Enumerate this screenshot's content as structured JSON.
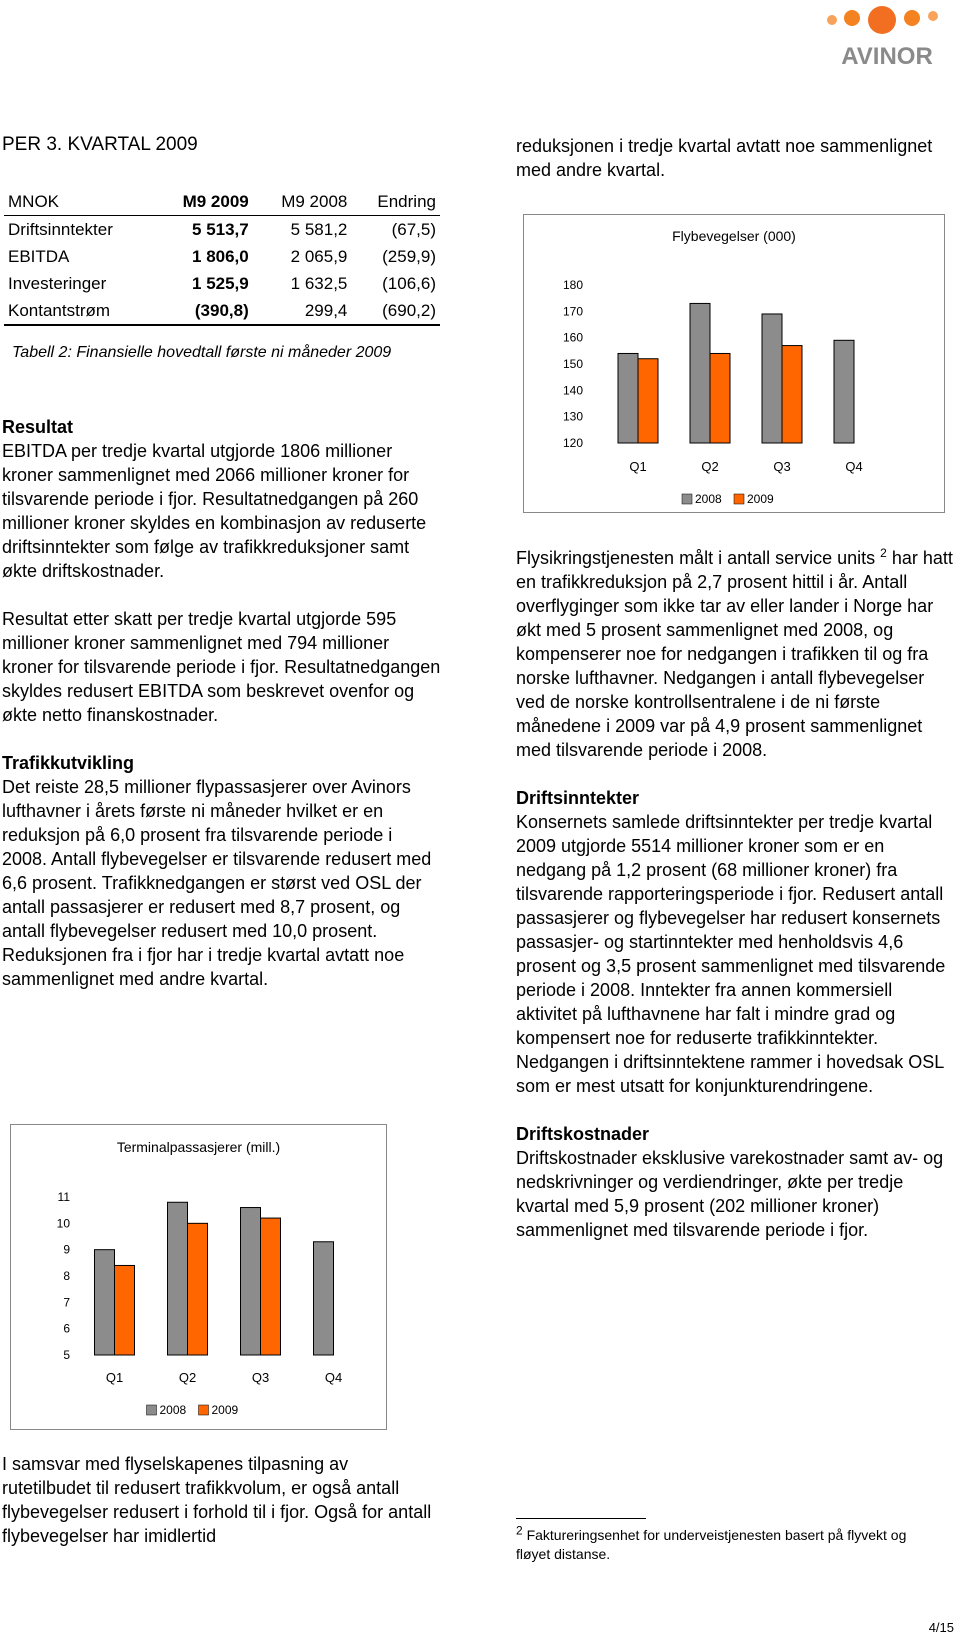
{
  "header": {
    "logo": "AVINOR",
    "title": "PER 3. KVARTAL 2009"
  },
  "table": {
    "columns": [
      "MNOK",
      "M9 2009",
      "M9 2008",
      "Endring"
    ],
    "rows": [
      [
        "Driftsinntekter",
        "5 513,7",
        "5 581,2",
        "(67,5)"
      ],
      [
        "EBITDA",
        "1 806,0",
        "2 065,9",
        "(259,9)"
      ],
      [
        "Investeringer",
        "1 525,9",
        "1 632,5",
        "(106,6)"
      ],
      [
        "Kontantstrøm",
        "(390,8)",
        "299,4",
        "(690,2)"
      ]
    ],
    "caption": "Tabell 2: Finansielle hovedtall første ni måneder 2009"
  },
  "left_column": [
    {
      "heading": "Resultat",
      "paragraphs": [
        "EBITDA per tredje kvartal utgjorde 1806 millioner kroner sammenlignet med 2066 millioner kroner for tilsvarende periode i fjor. Resultatnedgangen på 260 millioner kroner skyldes en kombinasjon av reduserte driftsinntekter som følge av trafikkreduksjoner samt økte driftskostnader.",
        "Resultat etter skatt per tredje kvartal utgjorde 595 millioner kroner sammenlignet med 794 millioner kroner for tilsvarende periode i fjor. Resultatnedgangen skyldes redusert EBITDA som beskrevet ovenfor og økte netto finanskostnader."
      ]
    },
    {
      "heading": "Trafikkutvikling",
      "paragraphs": [
        "Det reiste 28,5 millioner flypassasjerer over Avinors lufthavner i årets første ni måneder hvilket er en reduksjon på 6,0 prosent fra tilsvarende periode i 2008. Antall flybevegelser er tilsvarende redusert med 6,6 prosent. Trafikknedgangen er størst ved OSL der antall passasjerer er redusert med 8,7 prosent, og antall flybevegelser redusert med 10,0 prosent. Reduksjonen fra i fjor har i tredje kvartal avtatt noe sammenlignet med andre kvartal."
      ]
    }
  ],
  "left_bottom": "I samsvar med flyselskapenes tilpasning av rutetilbudet til redusert trafikkvolum, er også antall flybevegelser redusert i forhold til i fjor. Også for antall flybevegelser har imidlertid",
  "right_top": "reduksjonen i tredje kvartal avtatt noe sammenlignet med andre kvartal.",
  "right_column": [
    {
      "text_before": "Flysikringstjenesten målt i antall service units",
      "footnote_ref": "2",
      "text_after": "har hatt en trafikkreduksjon på 2,7 prosent hittil i år. Antall overflyginger som ikke tar av eller lander i Norge har økt med 5 prosent sammenlignet med 2008, og kompenserer noe for nedgangen i trafikken til og fra norske lufthavner. Nedgangen i antall flybevegelser ved de norske kontrollsentralene i de ni første månedene i 2009 var på 4,9 prosent sammenlignet med tilsvarende periode i 2008."
    },
    {
      "heading": "Driftsinntekter",
      "paragraphs": [
        "Konsernets samlede driftsinntekter per tredje kvartal 2009 utgjorde 5514 millioner kroner som er en nedgang på 1,2 prosent (68 millioner kroner) fra tilsvarende rapporteringsperiode i fjor. Redusert antall passasjerer og flybevegelser har redusert konsernets passasjer- og startinntekter med henholdsvis 4,6 prosent og 3,5 prosent sammenlignet med tilsvarende periode i 2008. Inntekter fra annen kommersiell aktivitet på lufthavnene har falt i mindre grad og kompensert noe for reduserte trafikkinntekter. Nedgangen i driftsinntektene rammer i hovedsak OSL som er mest utsatt for konjunkturendringene."
      ]
    },
    {
      "heading": "Driftskostnader",
      "paragraphs": [
        "Driftskostnader eksklusive varekostnader samt av- og nedskrivninger og verdiendringer, økte per tredje kvartal med 5,9 prosent (202 millioner kroner) sammenlignet med tilsvarende periode i fjor."
      ]
    }
  ],
  "footnote": {
    "number": "2",
    "text": "Faktureringsenhet for underveistjenesten basert på flyvekt og fløyet distanse."
  },
  "page_number": "4/15",
  "chart_data": [
    {
      "type": "bar",
      "title": "Terminalpassasjerer (mill.)",
      "categories": [
        "Q1",
        "Q2",
        "Q3",
        "Q4"
      ],
      "series": [
        {
          "name": "2008",
          "color": "#8c8c8c",
          "values": [
            9.0,
            10.8,
            10.6,
            9.3
          ]
        },
        {
          "name": "2009",
          "color": "#ff6600",
          "values": [
            8.4,
            10.0,
            10.2,
            null
          ]
        }
      ],
      "ylim": [
        5,
        11
      ],
      "yticks": [
        5,
        6,
        7,
        8,
        9,
        10,
        11
      ],
      "legend": "bottom"
    },
    {
      "type": "bar",
      "title": "Flybevegelser (000)",
      "categories": [
        "Q1",
        "Q2",
        "Q3",
        "Q4"
      ],
      "series": [
        {
          "name": "2008",
          "color": "#8c8c8c",
          "values": [
            154,
            173,
            169,
            159
          ]
        },
        {
          "name": "2009",
          "color": "#ff6600",
          "values": [
            152,
            154,
            157,
            null
          ]
        }
      ],
      "ylim": [
        120,
        180
      ],
      "yticks": [
        120,
        130,
        140,
        150,
        160,
        170,
        180
      ],
      "legend": "bottom"
    }
  ]
}
